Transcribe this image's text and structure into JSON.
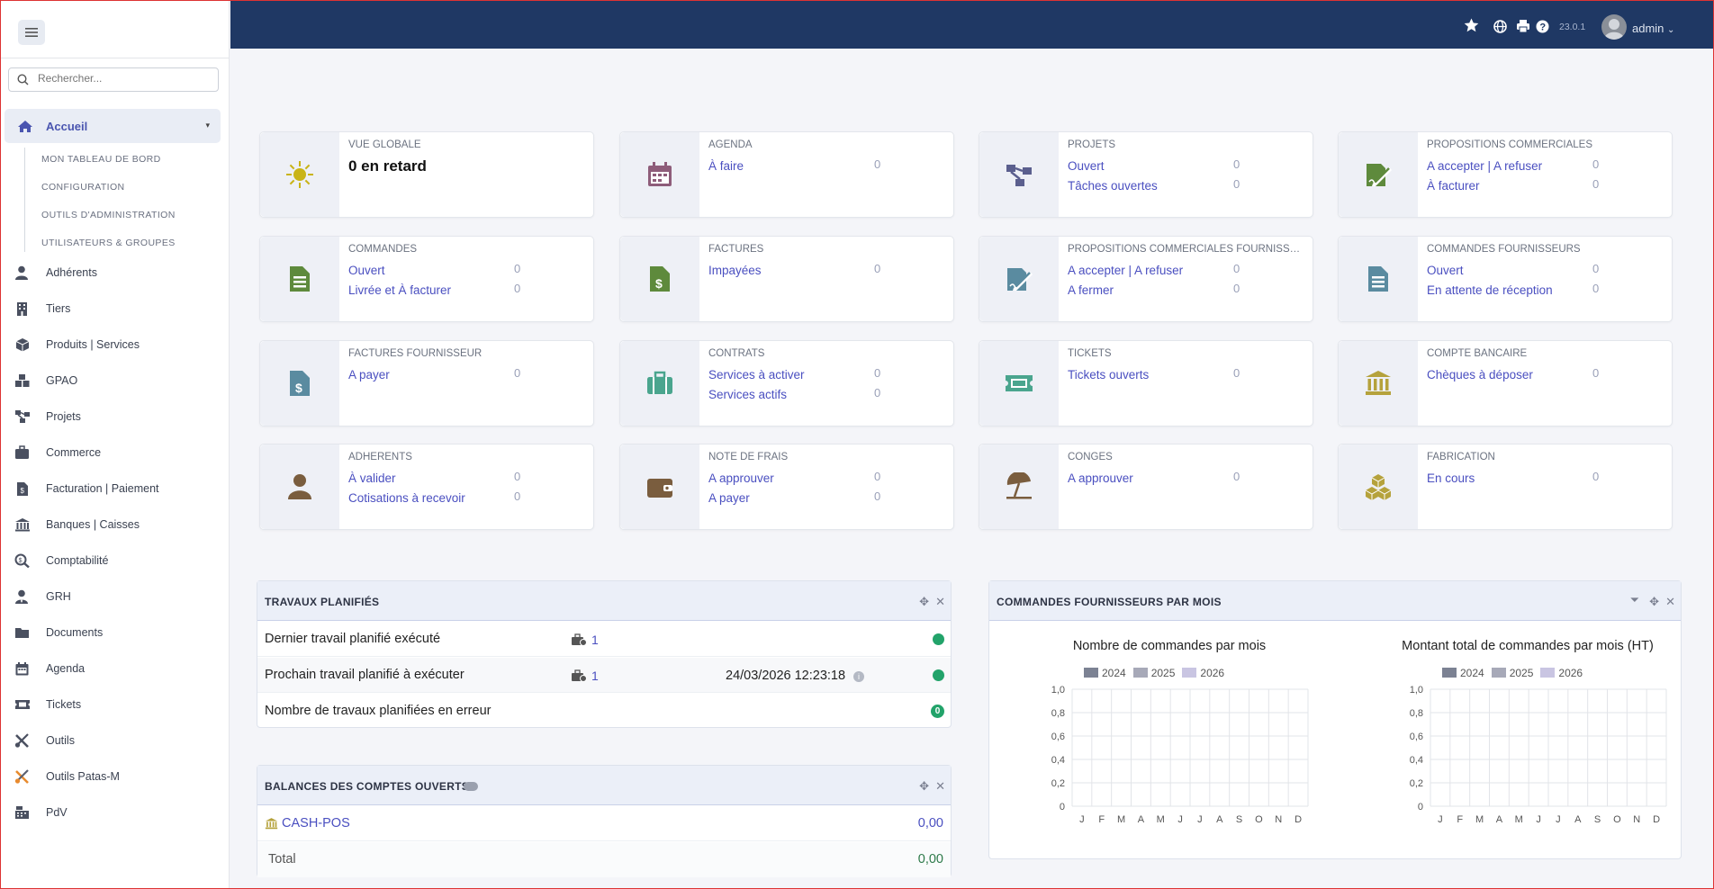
{
  "sidebar": {
    "search_placeholder": "Rechercher...",
    "home": {
      "label": "Accueil",
      "icon": "home-icon"
    },
    "home_sub": [
      "MON TABLEAU DE BORD",
      "CONFIGURATION",
      "OUTILS D'ADMINISTRATION",
      "UTILISATEURS & GROUPES"
    ],
    "items": [
      {
        "label": "Adhérents",
        "icon": "member-icon"
      },
      {
        "label": "Tiers",
        "icon": "building-icon"
      },
      {
        "label": "Produits | Services",
        "icon": "cube-icon"
      },
      {
        "label": "GPAO",
        "icon": "cubes-icon"
      },
      {
        "label": "Projets",
        "icon": "project-tree-icon"
      },
      {
        "label": "Commerce",
        "icon": "briefcase-icon"
      },
      {
        "label": "Facturation | Paiement",
        "icon": "invoice-icon"
      },
      {
        "label": "Banques | Caisses",
        "icon": "bank-icon"
      },
      {
        "label": "Comptabilité",
        "icon": "search-dollar-icon"
      },
      {
        "label": "GRH",
        "icon": "user-tie-icon"
      },
      {
        "label": "Documents",
        "icon": "folder-icon"
      },
      {
        "label": "Agenda",
        "icon": "calendar-icon"
      },
      {
        "label": "Tickets",
        "icon": "ticket-icon"
      },
      {
        "label": "Outils",
        "icon": "tools-icon"
      },
      {
        "label": "Outils Patas-M",
        "icon": "tools-orange-icon"
      },
      {
        "label": "PdV",
        "icon": "cash-register-icon"
      }
    ]
  },
  "topbar": {
    "version": "23.0.1",
    "user": "admin"
  },
  "cards": [
    {
      "title": "VUE GLOBALE",
      "big": "0 en retard",
      "icon": "sun-icon",
      "color": "#c9b417"
    },
    {
      "title": "AGENDA",
      "l1": "À faire",
      "n1": "0",
      "icon": "calendar-icon",
      "color": "#8e5d7a"
    },
    {
      "title": "PROJETS",
      "l1": "Ouvert",
      "n1": "0",
      "l2": "Tâches ouvertes",
      "n2": "0",
      "icon": "project-tree-icon",
      "color": "#5b5f8e"
    },
    {
      "title": "PROPOSITIONS COMMERCIALES",
      "l1": "A accepter | A refuser",
      "n1": "0",
      "l2": "À facturer",
      "n2": "0",
      "icon": "signature-icon",
      "color": "#5e8a3c"
    },
    {
      "title": "COMMANDES",
      "l1": "Ouvert",
      "n1": "0",
      "l2": "Livrée et À facturer",
      "n2": "0",
      "icon": "order-file-icon",
      "color": "#5e8a3c"
    },
    {
      "title": "FACTURES",
      "l1": "Impayées",
      "n1": "0",
      "icon": "invoice-dollar-icon",
      "color": "#5e8a3c"
    },
    {
      "title": "PROPOSITIONS COMMERCIALES FOURNISSEURS",
      "l1": "A accepter | A refuser",
      "n1": "0",
      "l2": "A fermer",
      "n2": "0",
      "icon": "signature-icon",
      "color": "#5a8ba0"
    },
    {
      "title": "COMMANDES FOURNISSEURS",
      "l1": "Ouvert",
      "n1": "0",
      "l2": "En attente de réception",
      "n2": "0",
      "icon": "order-file-icon",
      "color": "#5a8ba0"
    },
    {
      "title": "FACTURES FOURNISSEUR",
      "l1": "A payer",
      "n1": "0",
      "icon": "invoice-dollar-icon",
      "color": "#5a8ba0"
    },
    {
      "title": "CONTRATS",
      "l1": "Services à activer",
      "n1": "0",
      "l2": "Services actifs",
      "n2": "0",
      "icon": "suitcase-icon",
      "color": "#4aa58e"
    },
    {
      "title": "TICKETS",
      "l1": "Tickets ouverts",
      "n1": "0",
      "icon": "ticket-icon",
      "color": "#4aa58e"
    },
    {
      "title": "COMPTE BANCAIRE",
      "l1": "Chèques à déposer",
      "n1": "0",
      "icon": "bank-icon",
      "color": "#b5a23c"
    },
    {
      "title": "ADHÉRENTS",
      "l1": "À valider",
      "n1": "0",
      "l2": "Cotisations à recevoir",
      "n2": "0",
      "icon": "user-icon",
      "color": "#7a5d3e"
    },
    {
      "title": "NOTE DE FRAIS",
      "l1": "A approuver",
      "n1": "0",
      "l2": "A payer",
      "n2": "0",
      "icon": "wallet-icon",
      "color": "#7a5d3e"
    },
    {
      "title": "CONGÉS",
      "l1": "A approuver",
      "n1": "0",
      "icon": "beach-umbrella-icon",
      "color": "#7a5d3e"
    },
    {
      "title": "FABRICATION",
      "l1": "En cours",
      "n1": "0",
      "icon": "cubes-icon",
      "color": "#b5a23c"
    }
  ],
  "jobs": {
    "title": "TRAVAUX PLANIFIÉS",
    "rows": [
      {
        "label": "Dernier travail planifié exécuté",
        "count": "1",
        "date": ""
      },
      {
        "label": "Prochain travail planifié à exécuter",
        "count": "1",
        "date": "24/03/2026 12:23:18"
      },
      {
        "label": "Nombre de travaux planifiées en erreur",
        "badge": "0"
      }
    ]
  },
  "balances": {
    "title": "BALANCES DES COMPTES OUVERTS",
    "account": "CASH-POS",
    "account_value": "0,00",
    "total_label": "Total",
    "total_value": "0,00"
  },
  "supplier_orders": {
    "title": "COMMANDES FOURNISSEURS PAR MOIS"
  },
  "chart_data": [
    {
      "type": "bar",
      "title": "Nombre de commandes par mois",
      "categories": [
        "J",
        "F",
        "M",
        "A",
        "M",
        "J",
        "J",
        "A",
        "S",
        "O",
        "N",
        "D"
      ],
      "series": [
        {
          "name": "2024",
          "values": [
            0,
            0,
            0,
            0,
            0,
            0,
            0,
            0,
            0,
            0,
            0,
            0
          ],
          "color": "#7c8293"
        },
        {
          "name": "2025",
          "values": [
            0,
            0,
            0,
            0,
            0,
            0,
            0,
            0,
            0,
            0,
            0,
            0
          ],
          "color": "#a7a9b8"
        },
        {
          "name": "2026",
          "values": [
            0,
            0,
            0,
            0,
            0,
            0,
            0,
            0,
            0,
            0,
            0,
            0
          ],
          "color": "#c9c5e2"
        }
      ],
      "yticks": [
        "0",
        "0,2",
        "0,4",
        "0,6",
        "0,8",
        "1,0"
      ],
      "ylim": [
        0,
        1
      ],
      "grid": true,
      "legend": "top"
    },
    {
      "type": "bar",
      "title": "Montant total de commandes par mois (HT)",
      "categories": [
        "J",
        "F",
        "M",
        "A",
        "M",
        "J",
        "J",
        "A",
        "S",
        "O",
        "N",
        "D"
      ],
      "series": [
        {
          "name": "2024",
          "values": [
            0,
            0,
            0,
            0,
            0,
            0,
            0,
            0,
            0,
            0,
            0,
            0
          ],
          "color": "#7c8293"
        },
        {
          "name": "2025",
          "values": [
            0,
            0,
            0,
            0,
            0,
            0,
            0,
            0,
            0,
            0,
            0,
            0
          ],
          "color": "#a7a9b8"
        },
        {
          "name": "2026",
          "values": [
            0,
            0,
            0,
            0,
            0,
            0,
            0,
            0,
            0,
            0,
            0,
            0
          ],
          "color": "#c9c5e2"
        }
      ],
      "yticks": [
        "0",
        "0,2",
        "0,4",
        "0,6",
        "0,8",
        "1,0"
      ],
      "ylim": [
        0,
        1
      ],
      "grid": true,
      "legend": "top"
    }
  ]
}
